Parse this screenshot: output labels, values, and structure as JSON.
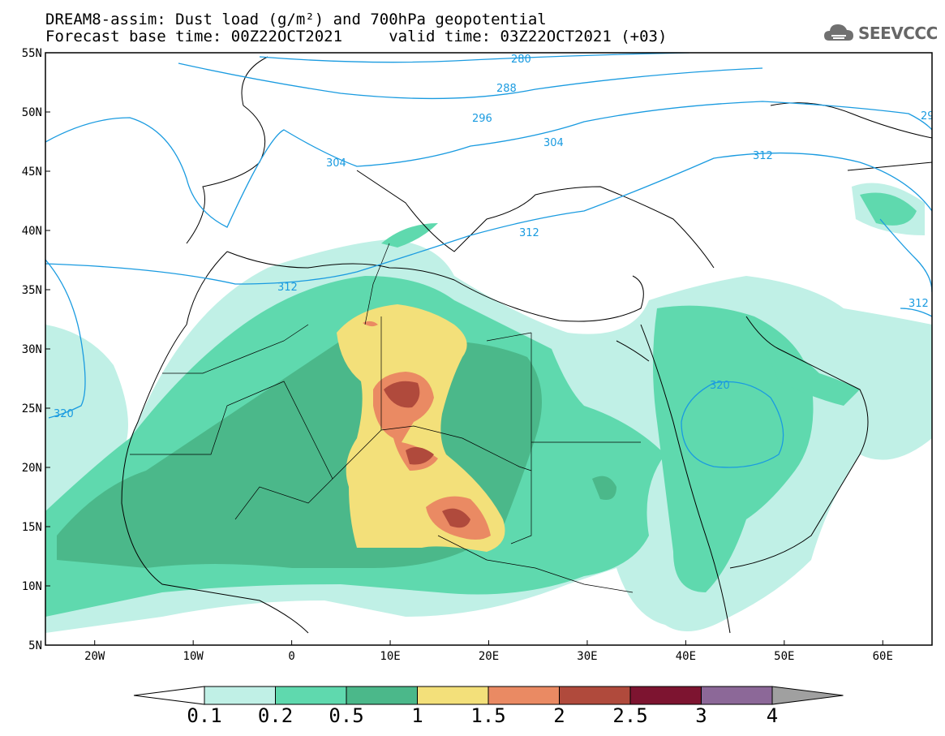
{
  "title": {
    "line1": "DREAM8-assim: Dust load (g/m²) and 700hPa geopotential",
    "line2": "Forecast base time: 00Z22OCT2021     valid time: 03Z22OCT2021 (+03)"
  },
  "logo": {
    "text": "SEEVCCC",
    "icon": "cloud-icon"
  },
  "map": {
    "lat_ticks": [
      "55N",
      "50N",
      "45N",
      "40N",
      "35N",
      "30N",
      "25N",
      "20N",
      "15N",
      "10N",
      "5N"
    ],
    "lon_ticks": [
      "20W",
      "10W",
      "0",
      "10E",
      "20E",
      "30E",
      "40E",
      "50E",
      "60E"
    ],
    "lat_range": [
      5,
      55
    ],
    "lon_range": [
      -25,
      65
    ],
    "contour_labels": [
      "280",
      "288",
      "296",
      "304",
      "304",
      "312",
      "312",
      "312",
      "320",
      "320",
      "312",
      "29"
    ]
  },
  "colorbar": {
    "labels": [
      "0.1",
      "0.2",
      "0.5",
      "1",
      "1.5",
      "2",
      "2.5",
      "3",
      "4"
    ],
    "colors": [
      "#c0f0e6",
      "#5fd9ae",
      "#4bb88a",
      "#f3e07a",
      "#ea8a63",
      "#b04a3c",
      "#7d1430",
      "#8c6898",
      "#a0a0a0"
    ]
  },
  "colors": {
    "contour": "#1a9be0",
    "coast": "#000000",
    "dust_light": "#c0f0e6",
    "dust_med": "#5fd9ae",
    "dust_dark": "#4bb88a"
  }
}
